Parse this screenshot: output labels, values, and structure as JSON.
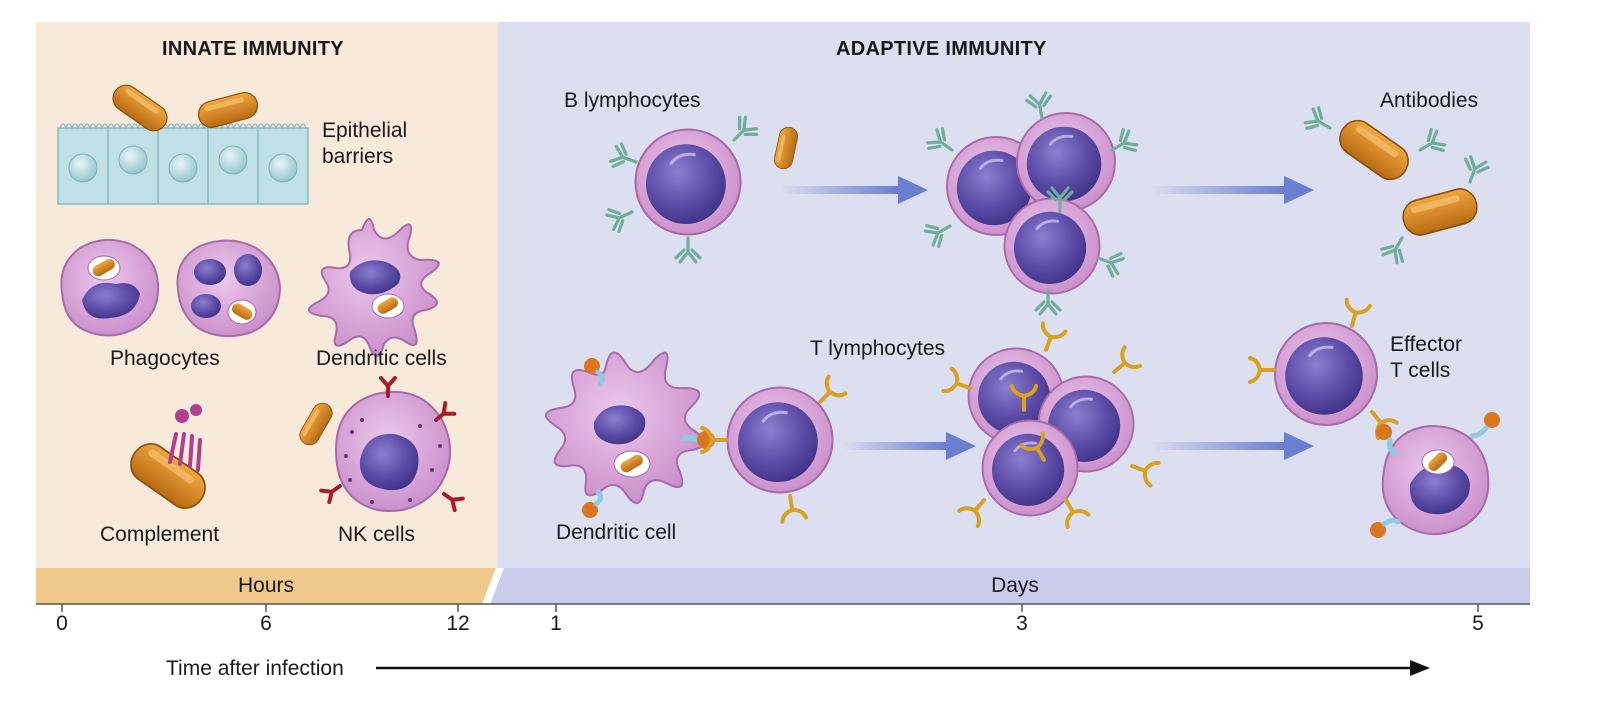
{
  "headers": {
    "innate": "INNATE IMMUNITY",
    "adaptive": "ADAPTIVE IMMUNITY"
  },
  "innate_labels": {
    "epithelial_line1": "Epithelial",
    "epithelial_line2": "barriers",
    "phagocytes": "Phagocytes",
    "dendritic_cells": "Dendritic cells",
    "complement": "Complement",
    "nk_cells": "NK cells"
  },
  "adaptive_labels": {
    "b_lymphocytes": "B lymphocytes",
    "antibodies": "Antibodies",
    "t_lymphocytes": "T lymphocytes",
    "effector_line1": "Effector",
    "effector_line2": "T cells",
    "dendritic_cell": "Dendritic cell"
  },
  "timeline": {
    "hours_label": "Hours",
    "days_label": "Days",
    "ticks": [
      "0",
      "6",
      "12",
      "1",
      "3",
      "5"
    ],
    "axis_label": "Time after infection"
  },
  "colors": {
    "innate_bg": "#f8eadb",
    "adaptive_bg": "#dcdff0",
    "hours_band": "#efc98c",
    "days_band": "#c9cdeb",
    "cell_body": "#d9a6d9",
    "nucleus": "#5b4ba6",
    "bacteria": "#d98a1f",
    "antibody": "#7fb8a6",
    "t_receptor": "#e2ad2c",
    "nk_receptor": "#b02030",
    "arrow": "#6a7fd0"
  }
}
